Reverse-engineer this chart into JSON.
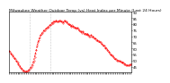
{
  "title": "Milwaukee Weather Outdoor Temp (vs) Heat Index per Minute (Last 24 Hours)",
  "line_color": "#ff0000",
  "background_color": "#ffffff",
  "plot_bg_color": "#ffffff",
  "ylim": [
    40,
    90
  ],
  "yticks": [
    45,
    50,
    55,
    60,
    65,
    70,
    75,
    80,
    85,
    90
  ],
  "num_points": 144,
  "y_values": [
    58,
    57,
    56,
    55,
    54,
    53,
    52,
    51,
    50,
    49,
    48,
    47,
    46,
    45,
    44,
    43,
    42,
    42,
    41,
    41,
    41,
    41,
    42,
    42,
    43,
    44,
    45,
    46,
    48,
    50,
    53,
    56,
    59,
    62,
    65,
    67,
    69,
    71,
    72,
    73,
    74,
    75,
    75,
    76,
    77,
    77,
    78,
    79,
    79,
    80,
    81,
    81,
    82,
    82,
    82,
    83,
    82,
    82,
    82,
    83,
    83,
    82,
    82,
    81,
    82,
    83,
    82,
    82,
    81,
    80,
    80,
    79,
    79,
    78,
    79,
    78,
    78,
    77,
    77,
    76,
    77,
    76,
    75,
    74,
    74,
    73,
    74,
    73,
    72,
    72,
    72,
    71,
    72,
    71,
    70,
    70,
    71,
    70,
    70,
    69,
    68,
    68,
    67,
    67,
    66,
    66,
    65,
    65,
    64,
    63,
    62,
    62,
    61,
    60,
    60,
    59,
    58,
    57,
    56,
    55,
    54,
    54,
    53,
    52,
    51,
    51,
    50,
    50,
    50,
    50,
    49,
    49,
    48,
    48,
    48,
    47,
    47,
    46,
    46,
    46,
    46,
    46,
    47,
    47
  ],
  "vline_positions": [
    24,
    48
  ],
  "vline_color": "#999999",
  "title_fontsize": 3.2,
  "tick_fontsize": 2.8,
  "linewidth": 0.7,
  "dashes": [
    2,
    1.5
  ],
  "marker_size": 0.6
}
